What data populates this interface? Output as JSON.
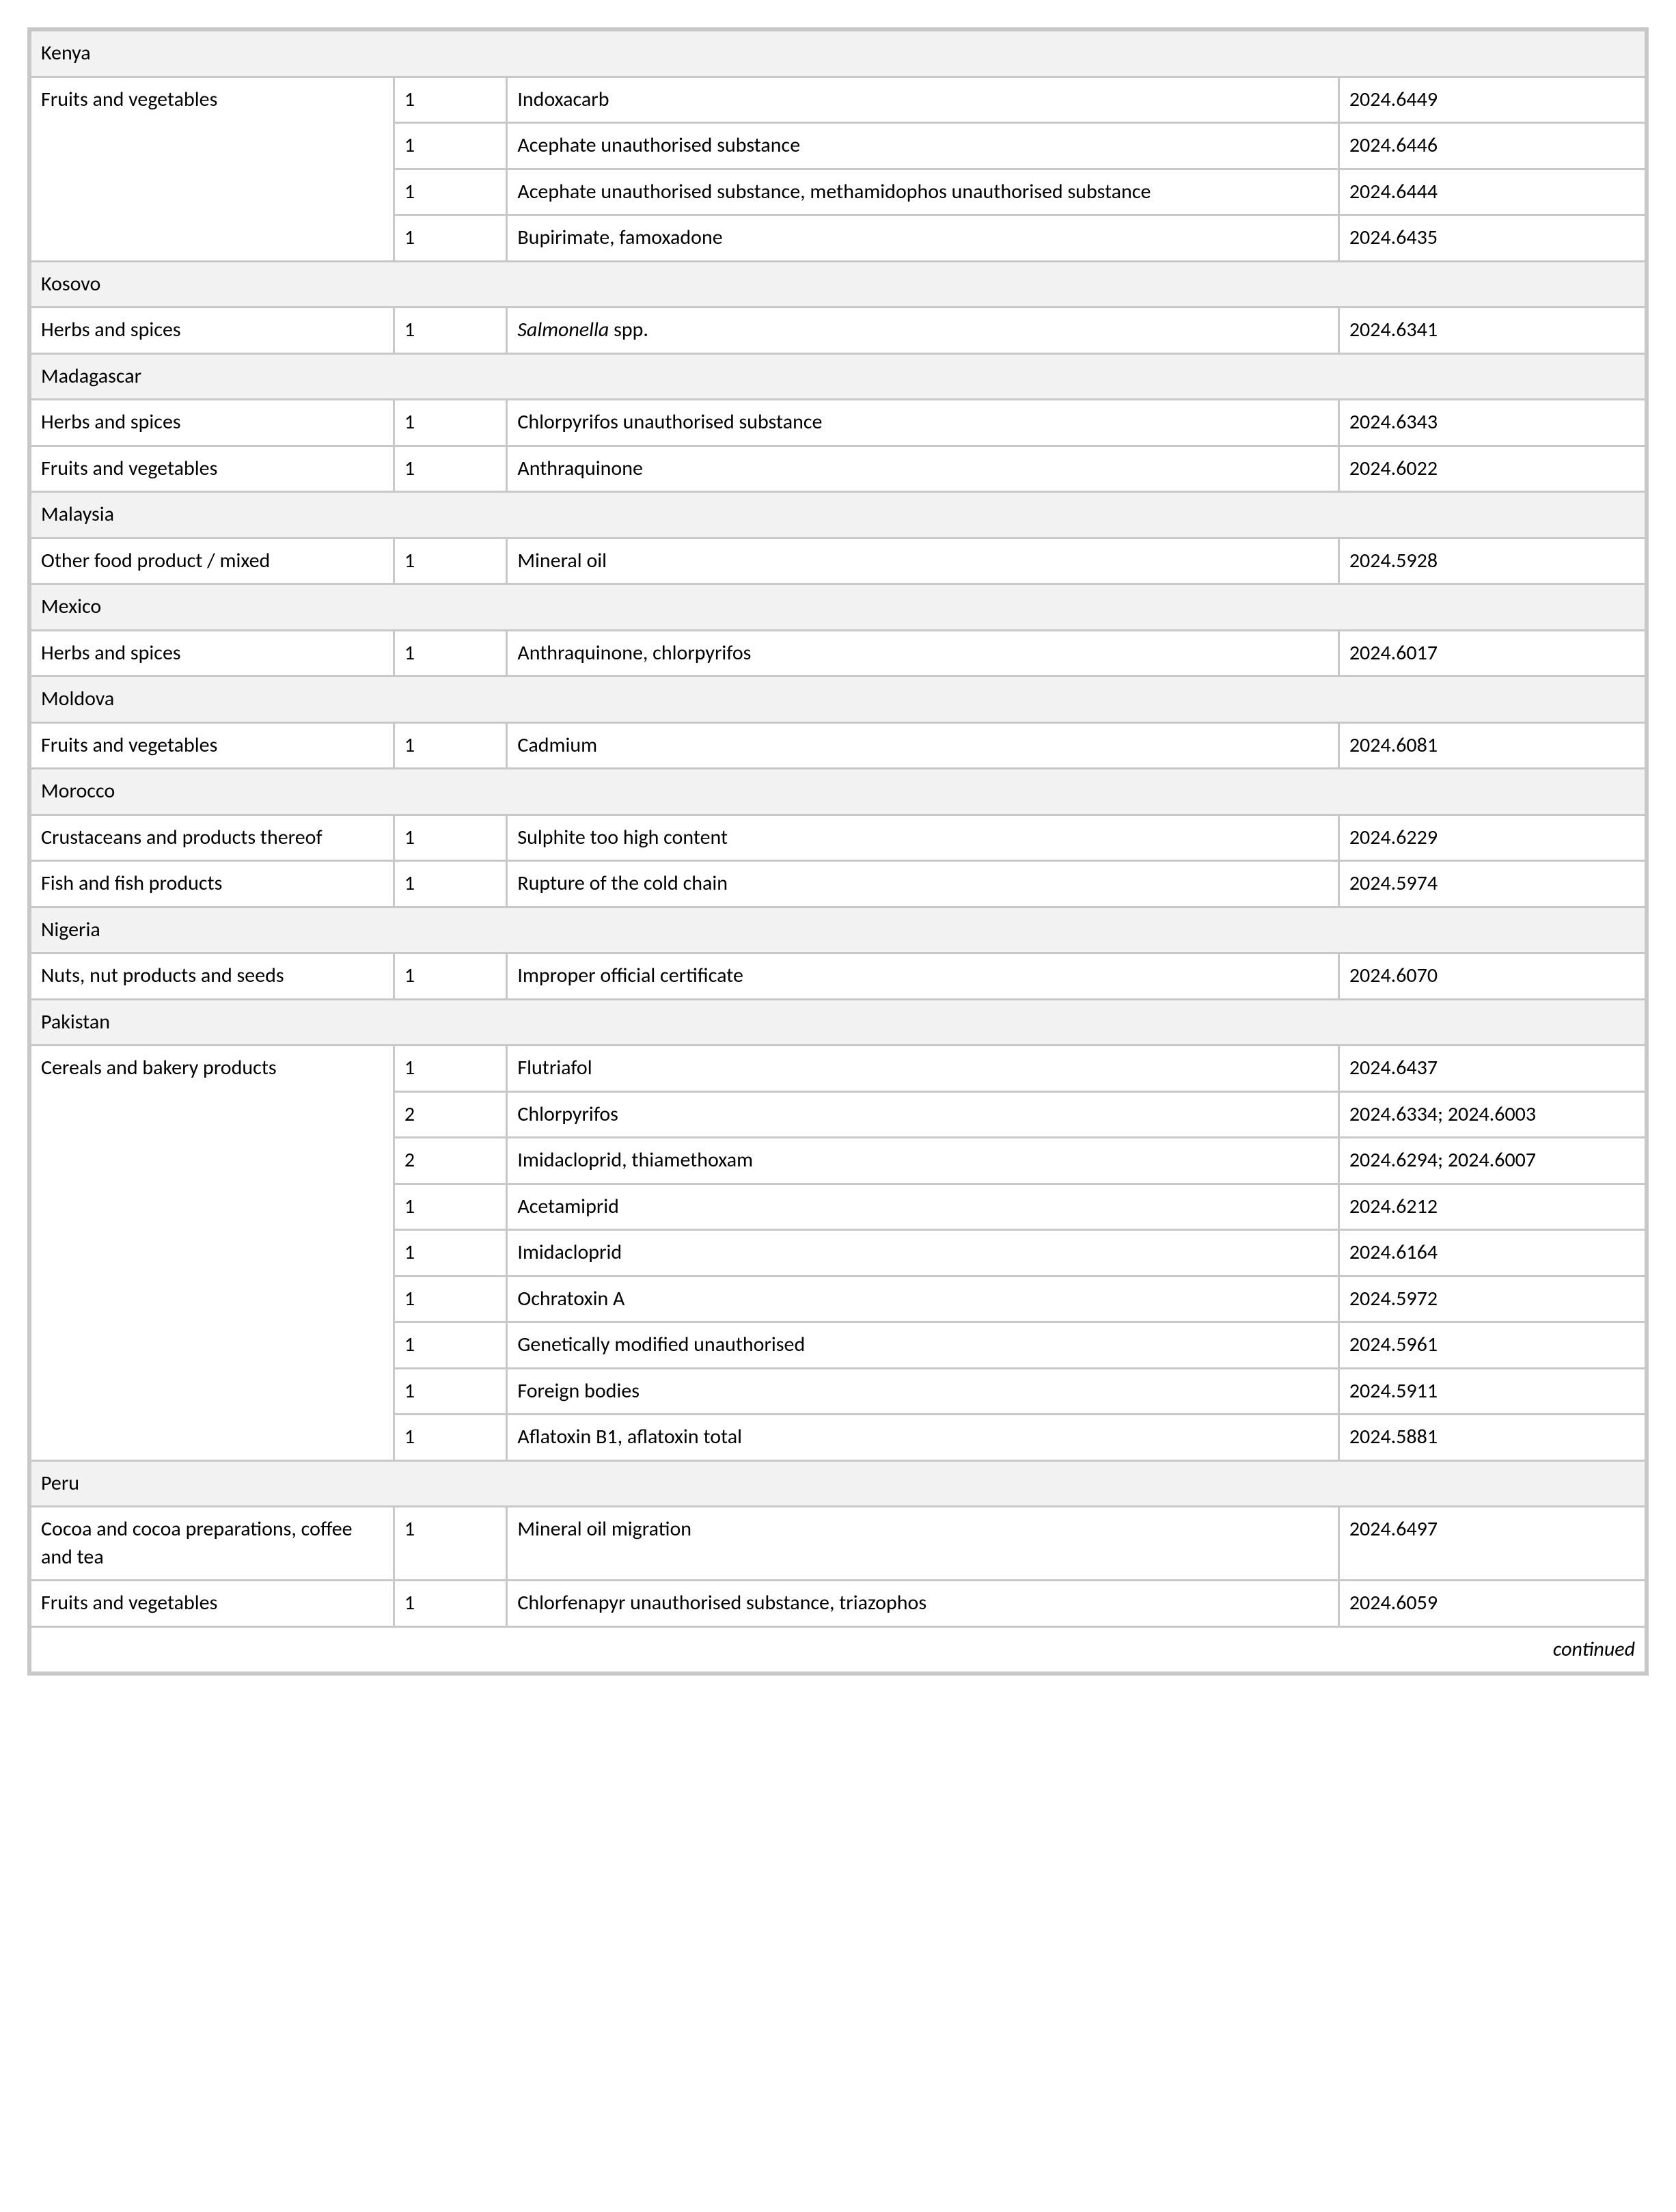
{
  "continued_label": "continued",
  "sections": [
    {
      "country": "Kenya",
      "groups": [
        {
          "category": "Fruits and vegetables",
          "rows": [
            {
              "count": "1",
              "hazard": "Indoxacarb",
              "ref": "2024.6449"
            },
            {
              "count": "1",
              "hazard": "Acephate unauthorised substance",
              "ref": "2024.6446"
            },
            {
              "count": "1",
              "hazard": "Acephate unauthorised substance, methamidophos unauthorised substance",
              "ref": "2024.6444"
            },
            {
              "count": "1",
              "hazard": "Bupirimate, famoxadone",
              "ref": "2024.6435"
            }
          ]
        }
      ]
    },
    {
      "country": "Kosovo",
      "groups": [
        {
          "category": "Herbs and spices",
          "rows": [
            {
              "count": "1",
              "hazard_italic_prefix": "Salmonella",
              "hazard_rest": " spp.",
              "ref": "2024.6341"
            }
          ]
        }
      ]
    },
    {
      "country": "Madagascar",
      "groups": [
        {
          "category": "Herbs and spices",
          "rows": [
            {
              "count": "1",
              "hazard": "Chlorpyrifos unauthorised substance",
              "ref": "2024.6343"
            }
          ]
        },
        {
          "category": "Fruits and vegetables",
          "rows": [
            {
              "count": "1",
              "hazard": "Anthraquinone",
              "ref": "2024.6022"
            }
          ]
        }
      ]
    },
    {
      "country": "Malaysia",
      "groups": [
        {
          "category": "Other food product / mixed",
          "rows": [
            {
              "count": "1",
              "hazard": "Mineral oil",
              "ref": "2024.5928"
            }
          ]
        }
      ]
    },
    {
      "country": "Mexico",
      "groups": [
        {
          "category": "Herbs and spices",
          "rows": [
            {
              "count": "1",
              "hazard": "Anthraquinone, chlorpyrifos",
              "ref": "2024.6017"
            }
          ]
        }
      ]
    },
    {
      "country": "Moldova",
      "groups": [
        {
          "category": "Fruits and vegetables",
          "rows": [
            {
              "count": "1",
              "hazard": "Cadmium",
              "ref": "2024.6081"
            }
          ]
        }
      ]
    },
    {
      "country": "Morocco",
      "groups": [
        {
          "category": "Crustaceans and products thereof",
          "rows": [
            {
              "count": "1",
              "hazard": "Sulphite too high content",
              "ref": "2024.6229"
            }
          ]
        },
        {
          "category": "Fish and fish products",
          "rows": [
            {
              "count": "1",
              "hazard": "Rupture of the cold chain",
              "ref": "2024.5974"
            }
          ]
        }
      ]
    },
    {
      "country": "Nigeria",
      "groups": [
        {
          "category": "Nuts, nut products and seeds",
          "rows": [
            {
              "count": "1",
              "hazard": "Improper official certificate",
              "ref": "2024.6070"
            }
          ]
        }
      ]
    },
    {
      "country": "Pakistan",
      "groups": [
        {
          "category": "Cereals and bakery products",
          "rows": [
            {
              "count": "1",
              "hazard": "Flutriafol",
              "ref": "2024.6437"
            },
            {
              "count": "2",
              "hazard": "Chlorpyrifos",
              "ref": "2024.6334; 2024.6003"
            },
            {
              "count": "2",
              "hazard": "Imidacloprid, thiamethoxam",
              "ref": "2024.6294; 2024.6007"
            },
            {
              "count": "1",
              "hazard": "Acetamiprid",
              "ref": "2024.6212"
            },
            {
              "count": "1",
              "hazard": "Imidacloprid",
              "ref": "2024.6164"
            },
            {
              "count": "1",
              "hazard": "Ochratoxin A",
              "ref": "2024.5972"
            },
            {
              "count": "1",
              "hazard": "Genetically modified unauthorised",
              "ref": "2024.5961"
            },
            {
              "count": "1",
              "hazard": "Foreign bodies",
              "ref": "2024.5911"
            },
            {
              "count": "1",
              "hazard": "Aflatoxin B1, aflatoxin total",
              "ref": "2024.5881"
            }
          ]
        }
      ]
    },
    {
      "country": "Peru",
      "groups": [
        {
          "category": "Cocoa and cocoa preparations, coffee and tea",
          "rows": [
            {
              "count": "1",
              "hazard": "Mineral oil migration",
              "ref": "2024.6497"
            }
          ]
        },
        {
          "category": "Fruits and vegetables",
          "rows": [
            {
              "count": "1",
              "hazard": "Chlorfenapyr unauthorised substance, triazophos",
              "ref": "2024.6059"
            }
          ]
        }
      ]
    }
  ]
}
